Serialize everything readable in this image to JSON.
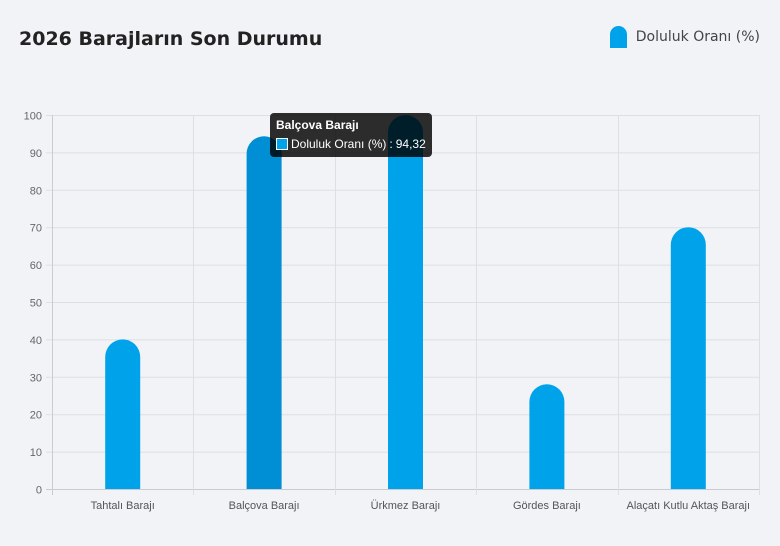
{
  "title": "2026 Barajların Son Durumu",
  "legend": {
    "label": "Doluluk Oranı (%)",
    "color": "#00a3ea"
  },
  "tooltip": {
    "title": "Balçova Barajı",
    "series_label": "Doluluk Oranı (%)",
    "value_text": "94,32"
  },
  "chart_data": {
    "type": "bar",
    "categories": [
      "Tahtalı Barajı",
      "Balçova Barajı",
      "Ürkmez Barajı",
      "Gördes Barajı",
      "Alaçatı Kutlu Aktaş Barajı"
    ],
    "series": [
      {
        "name": "Doluluk Oranı (%)",
        "values": [
          40,
          94.32,
          100,
          28,
          70
        ],
        "color": "#00a3ea"
      }
    ],
    "ylim": [
      0,
      100
    ],
    "yticks": [
      0,
      10,
      20,
      30,
      40,
      50,
      60,
      70,
      80,
      90,
      100
    ],
    "highlighted_index": 1,
    "highlight_color": "#008fd5",
    "grid": true,
    "legend_position": "top-right"
  }
}
